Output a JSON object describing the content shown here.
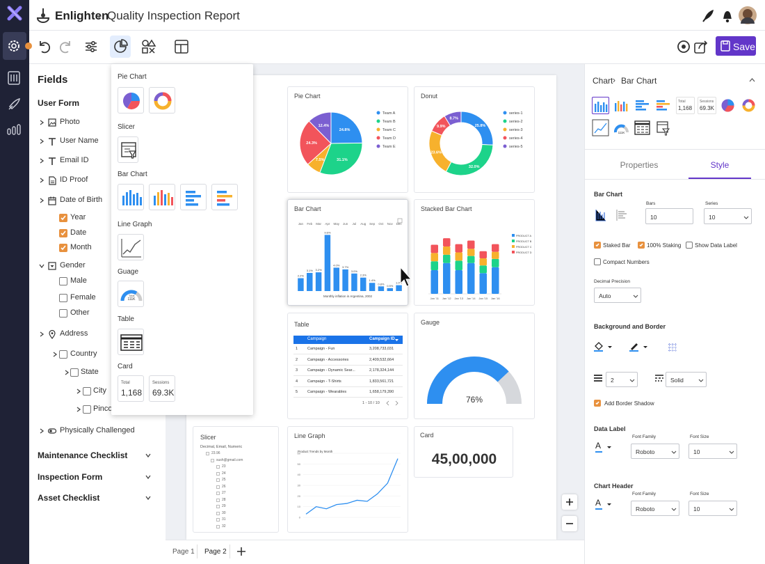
{
  "header": {
    "app": "Enlighten",
    "separator": "›",
    "title": "Quality Inspection Report"
  },
  "toolbar": {
    "save": "Save"
  },
  "fields": {
    "title": "Fields",
    "form": "User Form",
    "items": [
      "Photo",
      "User Name",
      "Email ID",
      "ID Proof",
      "Date of Birth",
      "Year",
      "Date",
      "Month",
      "Gender",
      "Male",
      "Female",
      "Other",
      "Address",
      "Country",
      "State",
      "City",
      "Pincode",
      "Physically Challenged"
    ],
    "sections": [
      "Maintenance Checklist",
      "Inspection Form",
      "Asset Checklist"
    ]
  },
  "chart_menu": {
    "headings": [
      "Pie Chart",
      "Slicer",
      "Bar Chart",
      "Line Graph",
      "Guage",
      "Table",
      "Card"
    ],
    "gauge_caption": "Total",
    "gauge_value": "111K",
    "card_items": [
      {
        "label": "Total",
        "value": "1,168"
      },
      {
        "label": "Sessions",
        "value": "69.3K"
      }
    ]
  },
  "chart_data": [
    {
      "type": "pie",
      "title": "Pie Chart",
      "categories": [
        "Team A",
        "Team B",
        "Team C",
        "Team D",
        "Team E"
      ],
      "values": [
        24.8,
        31.1,
        7.5,
        24.3,
        12.4
      ],
      "value_labels": [
        "24.8%",
        "31.1%",
        "7.5%",
        "24.3%",
        "12.4%"
      ],
      "colors": [
        "#2e8ff0",
        "#1dd38a",
        "#f7b12d",
        "#f2545b",
        "#7b5fd1"
      ]
    },
    {
      "type": "donut",
      "title": "Donut",
      "categories": [
        "series-1",
        "series-2",
        "series-3",
        "series-4",
        "series-5"
      ],
      "values": [
        25.8,
        32.0,
        23.6,
        9.9,
        8.7
      ],
      "value_labels": [
        "25.8%",
        "32.0%",
        "23.6%",
        "9.9%",
        "8.7%"
      ],
      "colors": [
        "#2e8ff0",
        "#1dd38a",
        "#f7b12d",
        "#f2545b",
        "#7b5fd1"
      ]
    },
    {
      "type": "bar",
      "title": "Bar Chart",
      "x_label": "Monthly inflation in Argentina, 2002",
      "categories": [
        "Jan",
        "Feb",
        "Mar",
        "Apr",
        "May",
        "Jun",
        "Jul",
        "Aug",
        "Sep",
        "Oct",
        "Nov",
        "Dec"
      ],
      "values": [
        2.2,
        3.1,
        3.2,
        9.6,
        4.0,
        3.7,
        3.0,
        2.3,
        1.4,
        0.8,
        0.5,
        1.0
      ],
      "value_labels": [
        "2.2%",
        "3.1%",
        "3.2%",
        "9.6%",
        "4.0%",
        "3.7%",
        "3.0%",
        "2.3%",
        "1.4%",
        "0.8%",
        "0.5%",
        "1.0%"
      ],
      "color": "#2e8ff0",
      "ylim": [
        0,
        10
      ]
    },
    {
      "type": "stacked_bar",
      "title": "Stacked Bar Chart",
      "categories": [
        "Jan '11",
        "Jan '12",
        "Jan '13",
        "Jan '14",
        "Jan '15",
        "Jan '16"
      ],
      "ylim": [
        0,
        100
      ],
      "series": [
        {
          "name": "PRODUCT A",
          "color": "#2e8ff0",
          "values": [
            40,
            52,
            40,
            52,
            35,
            45
          ]
        },
        {
          "name": "PRODUCT B",
          "color": "#1dd38a",
          "values": [
            15,
            14,
            16,
            12,
            13,
            14
          ]
        },
        {
          "name": "PRODUCT C",
          "color": "#f7b12d",
          "values": [
            14,
            14,
            14,
            12,
            12,
            12
          ]
        },
        {
          "name": "PRODUCT D",
          "color": "#f2545b",
          "values": [
            14,
            14,
            14,
            14,
            12,
            13
          ]
        }
      ]
    },
    {
      "type": "gauge",
      "title": "Gauge",
      "value": 76,
      "value_label": "76%",
      "ylim": [
        0,
        100
      ],
      "color": "#2e8ff0"
    },
    {
      "type": "line",
      "title": "Line Graph",
      "subtitle": "Product Trends by Month",
      "values": [
        3,
        10,
        8,
        12,
        13,
        16,
        15,
        22,
        32,
        55
      ],
      "color": "#2e8ff0",
      "ylim": [
        0,
        60
      ],
      "yticks": [
        0,
        10,
        20,
        30,
        40,
        50,
        60
      ],
      "grid": true
    }
  ],
  "widgets": {
    "table": {
      "title": "Table",
      "columns": [
        "Campaign",
        "Campaign ID"
      ],
      "rows": [
        [
          "1",
          "Campaign - Fun",
          "3,208,733,031"
        ],
        [
          "2",
          "Campaign - Accessories",
          "2,409,532,664"
        ],
        [
          "3",
          "Campaign - Dynamic Sear...",
          "2,178,324,144"
        ],
        [
          "4",
          "Campaign - T-Shirts",
          "1,833,561,721"
        ],
        [
          "5",
          "Campaign - Wearables",
          "1,658,179,390"
        ]
      ],
      "pagination": "1 - 10 / 10"
    },
    "slicer": {
      "title": "Slicer",
      "subtitle": "Decimal, Email, Numeric",
      "items": [
        "23.96",
        "sush@gmail.com",
        "23",
        "24",
        "25",
        "26",
        "27",
        "28",
        "29",
        "30",
        "31",
        "32"
      ]
    },
    "card": {
      "title": "Card",
      "value": "45,00,000"
    }
  },
  "properties": {
    "breadcrumb": [
      "Chart",
      "Bar Chart"
    ],
    "thumb_cards": [
      {
        "label": "Total",
        "value": "1,168"
      },
      {
        "label": "Sessions",
        "value": "69.3K"
      }
    ],
    "thumb_gauge": "111K",
    "tabs": [
      "Properties",
      "Style"
    ],
    "section": "Bar Chart",
    "bars_label": "Bars",
    "bars": "10",
    "series_label": "Series",
    "series": "10",
    "options": [
      "Staked Bar",
      "100% Staking",
      "Show Data Label",
      "Compact Numbers"
    ],
    "precision_label": "Decimal Precision",
    "precision": "Auto",
    "background_heading": "Background and Border",
    "border_width": "2",
    "border_style": "Solid",
    "shadow": "Add Border Shadow",
    "data_label": {
      "heading": "Data Label",
      "font_family_label": "Font Family",
      "font_family": "Roboto",
      "font_size_label": "Font Size",
      "font_size": "10"
    },
    "chart_header": {
      "heading": "Chart Header",
      "font_family_label": "Font Family",
      "font_family": "Roboto",
      "font_size_label": "Font Size",
      "font_size": "10"
    }
  },
  "pages": [
    "Page 1",
    "Page 2"
  ]
}
